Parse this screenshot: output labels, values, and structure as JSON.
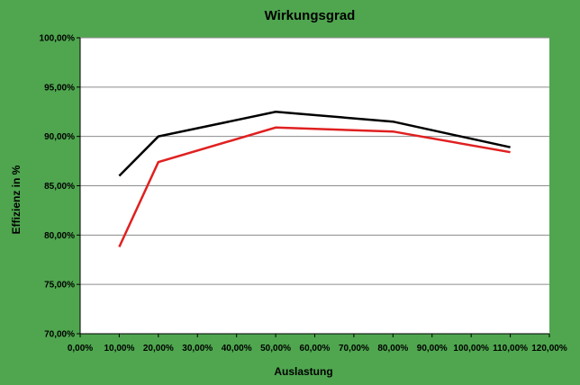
{
  "chart_data": {
    "type": "line",
    "title": "Wirkungsgrad",
    "xlabel": "Auslastung",
    "ylabel": "Effizienz in %",
    "xlim": [
      0,
      120
    ],
    "ylim": [
      70,
      100
    ],
    "x_ticks": [
      "0,00%",
      "10,00%",
      "20,00%",
      "30,00%",
      "40,00%",
      "50,00%",
      "60,00%",
      "70,00%",
      "80,00%",
      "90,00%",
      "100,00%",
      "110,00%",
      "120,00%"
    ],
    "y_ticks": [
      "70,00%",
      "75,00%",
      "80,00%",
      "85,00%",
      "90,00%",
      "95,00%",
      "100,00%"
    ],
    "grid": "horizontal",
    "legend": "none",
    "colors": {
      "background": "#4fa64f",
      "plot": "#ffffff",
      "grid": "#8c8c8c"
    },
    "series": [
      {
        "color": "#000000",
        "x": [
          10,
          20,
          50,
          80,
          110
        ],
        "y": [
          86.0,
          90.0,
          92.5,
          91.5,
          88.9
        ]
      },
      {
        "color": "#e02020",
        "x": [
          10,
          20,
          50,
          80,
          110
        ],
        "y": [
          78.8,
          87.4,
          90.9,
          90.5,
          88.4
        ]
      }
    ]
  }
}
